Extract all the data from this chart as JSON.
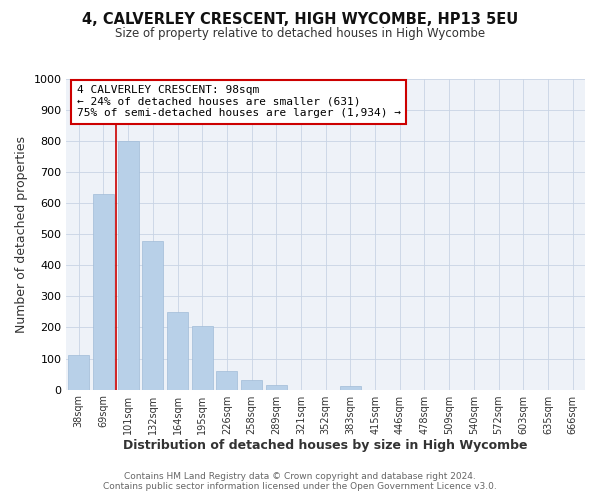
{
  "title": "4, CALVERLEY CRESCENT, HIGH WYCOMBE, HP13 5EU",
  "subtitle": "Size of property relative to detached houses in High Wycombe",
  "xlabel": "Distribution of detached houses by size in High Wycombe",
  "ylabel": "Number of detached properties",
  "bar_labels": [
    "38sqm",
    "69sqm",
    "101sqm",
    "132sqm",
    "164sqm",
    "195sqm",
    "226sqm",
    "258sqm",
    "289sqm",
    "321sqm",
    "352sqm",
    "383sqm",
    "415sqm",
    "446sqm",
    "478sqm",
    "509sqm",
    "540sqm",
    "572sqm",
    "603sqm",
    "635sqm",
    "666sqm"
  ],
  "bar_values": [
    110,
    630,
    800,
    480,
    250,
    205,
    60,
    30,
    15,
    0,
    0,
    10,
    0,
    0,
    0,
    0,
    0,
    0,
    0,
    0,
    0
  ],
  "bar_color": "#b8d0e8",
  "bar_edgecolor": "#a0bcd8",
  "property_line_x": 2,
  "ylim": [
    0,
    1000
  ],
  "yticks": [
    0,
    100,
    200,
    300,
    400,
    500,
    600,
    700,
    800,
    900,
    1000
  ],
  "annotation_text": "4 CALVERLEY CRESCENT: 98sqm\n← 24% of detached houses are smaller (631)\n75% of semi-detached houses are larger (1,934) →",
  "annotation_box_color": "#ffffff",
  "annotation_box_edgecolor": "#cc0000",
  "redline_color": "#cc0000",
  "footer1": "Contains HM Land Registry data © Crown copyright and database right 2024.",
  "footer2": "Contains public sector information licensed under the Open Government Licence v3.0.",
  "bg_color": "#eef2f8"
}
